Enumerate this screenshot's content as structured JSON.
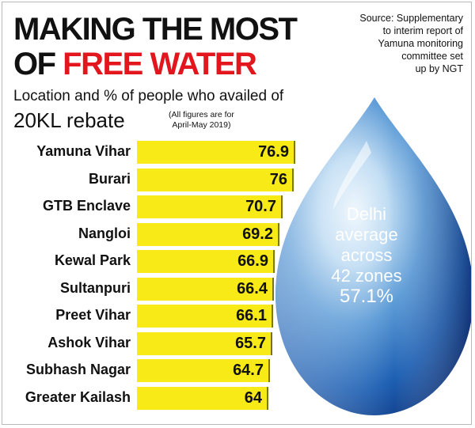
{
  "header": {
    "title_line1": "MAKING THE MOST",
    "title_of": "OF",
    "title_accent": "FREE WATER",
    "subtitle": "Location and % of people who availed of",
    "subtitle_line2": "20KL rebate",
    "period_note_line1": "(All figures are for",
    "period_note_line2": "April-May 2019)",
    "source_line1": "Source: Supplementary",
    "source_line2": "to interim report of",
    "source_line3": "Yamuna monitoring",
    "source_line4": "committee set",
    "source_line5": "up by NGT"
  },
  "callout": {
    "line1": "Delhi",
    "line2": "average",
    "line3": "across",
    "line4": "42 zones",
    "value": "57.1%"
  },
  "colors": {
    "bar": "#f7ea16",
    "accent": "#e3161d",
    "drop_dark": "#0d2f7a",
    "drop_light": "#cfe4f6"
  },
  "chart_data": {
    "type": "bar",
    "orientation": "horizontal",
    "categories": [
      "Yamuna Vihar",
      "Burari",
      "GTB Enclave",
      "Nangloi",
      "Kewal Park",
      "Sultanpuri",
      "Preet Vihar",
      "Ashok Vihar",
      "Subhash Nagar",
      "Greater Kailash"
    ],
    "values": [
      76.9,
      76,
      70.7,
      69.2,
      66.9,
      66.4,
      66.1,
      65.7,
      64.7,
      64
    ],
    "value_labels": [
      "76.9",
      "76",
      "70.7",
      "69.2",
      "66.9",
      "66.4",
      "66.1",
      "65.7",
      "64.7",
      "64"
    ],
    "title": "MAKING THE MOST OF FREE WATER",
    "xlabel": "",
    "ylabel": "",
    "grid": false
  }
}
